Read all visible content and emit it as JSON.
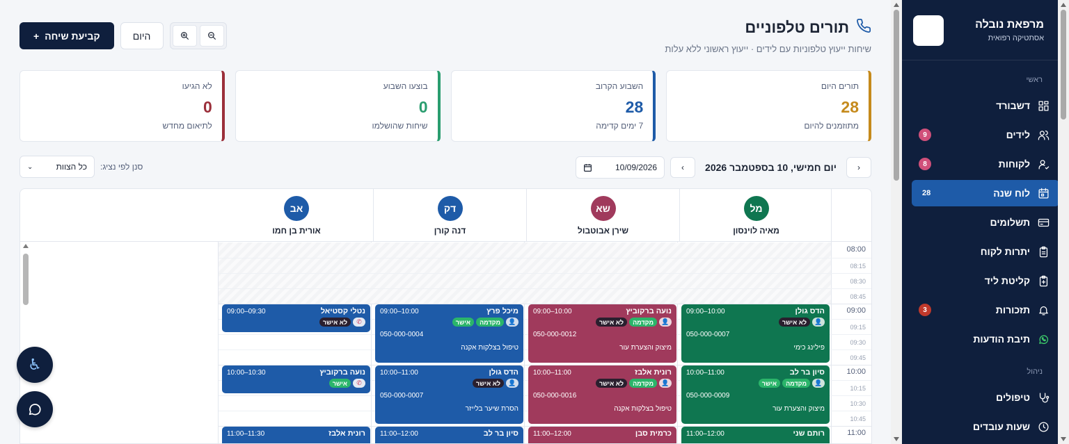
{
  "brand": {
    "name": "מרפאת נובלה",
    "subtitle": "אסתטיקה רפואית"
  },
  "sidebar": {
    "section_main": "ראשי",
    "section_manage": "ניהול",
    "items": [
      {
        "label": "דשבורד",
        "icon": "dashboard-icon",
        "badge": ""
      },
      {
        "label": "לידים",
        "icon": "users-icon",
        "badge": "9"
      },
      {
        "label": "לקוחות",
        "icon": "user-check-icon",
        "badge": "8"
      },
      {
        "label": "לוח שנה",
        "icon": "calendar-icon",
        "badge": "28",
        "active": true
      },
      {
        "label": "תשלומים",
        "icon": "card-icon",
        "badge": ""
      },
      {
        "label": "יתרות לקוח",
        "icon": "clipboard-icon",
        "badge": ""
      },
      {
        "label": "קליטת ליד",
        "icon": "clipboard-plus-icon",
        "badge": ""
      },
      {
        "label": "תזכורות",
        "icon": "bell-icon",
        "badge": "3"
      },
      {
        "label": "תיבת הודעות",
        "icon": "whatsapp-icon",
        "badge": ""
      }
    ],
    "manage_items": [
      {
        "label": "טיפולים",
        "icon": "stethoscope-icon"
      },
      {
        "label": "שעות עובדים",
        "icon": "clock-icon"
      }
    ]
  },
  "header": {
    "title": "תורים טלפוניים",
    "subtitle": "שיחות ייעוץ טלפוניות עם לידים · ייעוץ ראשוני ללא עלות",
    "new_call_label": "קביעת שיחה",
    "today_label": "היום"
  },
  "stats": [
    {
      "label": "תורים היום",
      "value": "28",
      "sub": "מתוזמנים להיום",
      "color": "#c58a1c"
    },
    {
      "label": "השבוע הקרוב",
      "value": "28",
      "sub": "7 ימים קדימה",
      "color": "#1e5ba8"
    },
    {
      "label": "בוצעו השבוע",
      "value": "0",
      "sub": "שיחות שהושלמו",
      "color": "#2a9d6f"
    },
    {
      "label": "לא הגיעו",
      "value": "0",
      "sub": "לתיאום מחדש",
      "color": "#9b2f3a"
    }
  ],
  "toolbar": {
    "date_title": "יום חמישי, 10 בספטמבר 2026",
    "date_value": "10/09/2026",
    "filter_label": "סנן לפי נציג:",
    "filter_value": "כל הצוות"
  },
  "staff": [
    {
      "initials": "מל",
      "name": "מאיה לוינסון",
      "color": "#0f7650"
    },
    {
      "initials": "שא",
      "name": "שירן אבוטבול",
      "color": "#a03a5c"
    },
    {
      "initials": "דק",
      "name": "דנה קורן",
      "color": "#1e5ba8"
    },
    {
      "initials": "אב",
      "name": "אורית בן חמו",
      "color": "#1e5ba8"
    }
  ],
  "times": {
    "t0800": "08:00",
    "t0815": "08:15",
    "t0830": "08:30",
    "t0845": "08:45",
    "t0900": "09:00",
    "t0915": "09:15",
    "t0930": "09:30",
    "t0945": "09:45",
    "t1000": "10:00",
    "t1015": "10:15",
    "t1030": "10:30",
    "t1045": "10:45",
    "t1100": "11:00"
  },
  "tags": {
    "prior": "מקדמה",
    "approved": "אישר",
    "not_approved": "לא אישר"
  },
  "appointments": {
    "a1": {
      "name": "הדס גולן",
      "time": "09:00–10:00",
      "phone": "050-000-0007",
      "note": "פילינג כימי"
    },
    "a2": {
      "name": "סיון בר לב",
      "time": "10:00–11:00",
      "phone": "050-000-0009",
      "note": "מיצוק והצערת עור"
    },
    "a3": {
      "name": "רותם שני",
      "time": "11:00–12:00"
    },
    "b1": {
      "name": "נועה ברקוביץ",
      "time": "09:00–10:00",
      "phone": "050-000-0012",
      "note": "מיצוק והצערת עור"
    },
    "b2": {
      "name": "רונית אלבז",
      "time": "10:00–11:00",
      "phone": "050-000-0016",
      "note": "טיפול בצלקות אקנה"
    },
    "b3": {
      "name": "כרמית סבן",
      "time": "11:00–12:00"
    },
    "c1": {
      "name": "מיכל פרץ",
      "time": "09:00–10:00",
      "phone": "050-000-0004",
      "note": "טיפול בצלקות אקנה"
    },
    "c2": {
      "name": "הדס גולן",
      "time": "10:00–11:00",
      "phone": "050-000-0007",
      "note": "הסרת שיער בלייזר"
    },
    "c3": {
      "name": "סיון בר לב",
      "time": "11:00–12:00"
    },
    "d1": {
      "name": "נטלי קסטיאל",
      "time": "09:00–09:30"
    },
    "d2": {
      "name": "נועה ברקוביץ",
      "time": "10:00–10:30"
    },
    "d3": {
      "name": "רונית אלבז",
      "time": "11:00–11:30"
    }
  }
}
